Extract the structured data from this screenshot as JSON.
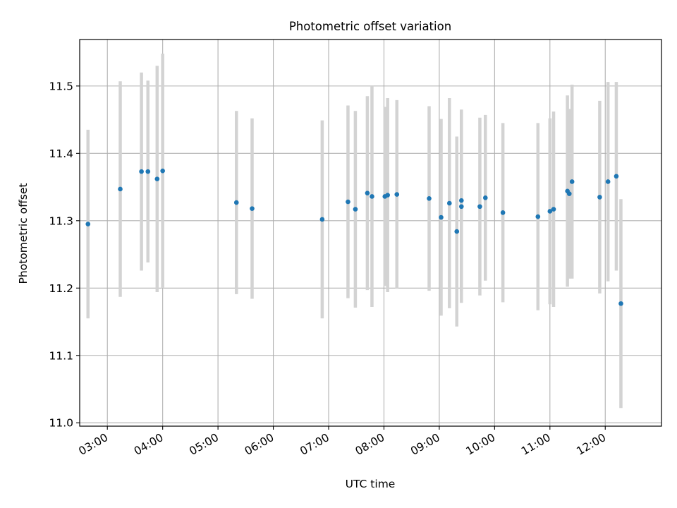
{
  "chart_data": {
    "type": "scatter",
    "title": "Photometric offset variation",
    "xlabel": "UTC time",
    "ylabel": "Photometric offset",
    "x_tick_labels": [
      "03:00",
      "04:00",
      "05:00",
      "06:00",
      "07:00",
      "08:00",
      "09:00",
      "10:00",
      "11:00",
      "12:00"
    ],
    "x_tick_times": [
      "03:00",
      "04:00",
      "05:00",
      "06:00",
      "07:00",
      "08:00",
      "09:00",
      "10:00",
      "11:00",
      "12:00"
    ],
    "xlim": [
      "02:30",
      "13:01"
    ],
    "y_ticks": [
      11.0,
      11.1,
      11.2,
      11.3,
      11.4,
      11.5
    ],
    "y_tick_labels": [
      "11.0",
      "11.1",
      "11.2",
      "11.3",
      "11.4",
      "11.5"
    ],
    "ylim": [
      10.995,
      11.569
    ],
    "grid": true,
    "colors": {
      "points": "#1f77b4",
      "error_bars": "#d3d3d3",
      "grid": "#b0b0b0"
    },
    "series": [
      {
        "points": [
          {
            "x": "02:39",
            "y": 11.295,
            "err": 0.14
          },
          {
            "x": "03:14",
            "y": 11.347,
            "err": 0.16
          },
          {
            "x": "03:37",
            "y": 11.373,
            "err": 0.147
          },
          {
            "x": "03:44",
            "y": 11.373,
            "err": 0.135
          },
          {
            "x": "03:54",
            "y": 11.362,
            "err": 0.168
          },
          {
            "x": "04:00",
            "y": 11.374,
            "err": 0.174
          },
          {
            "x": "05:20",
            "y": 11.327,
            "err": 0.136
          },
          {
            "x": "05:37",
            "y": 11.318,
            "err": 0.134
          },
          {
            "x": "06:53",
            "y": 11.302,
            "err": 0.147
          },
          {
            "x": "07:21",
            "y": 11.328,
            "err": 0.143
          },
          {
            "x": "07:29",
            "y": 11.317,
            "err": 0.146
          },
          {
            "x": "07:42",
            "y": 11.341,
            "err": 0.144
          },
          {
            "x": "07:47",
            "y": 11.336,
            "err": 0.164
          },
          {
            "x": "08:01",
            "y": 11.336,
            "err": 0.133
          },
          {
            "x": "08:04",
            "y": 11.338,
            "err": 0.144
          },
          {
            "x": "08:14",
            "y": 11.339,
            "err": 0.14
          },
          {
            "x": "08:49",
            "y": 11.333,
            "err": 0.137
          },
          {
            "x": "09:02",
            "y": 11.305,
            "err": 0.146
          },
          {
            "x": "09:11",
            "y": 11.326,
            "err": 0.156
          },
          {
            "x": "09:19",
            "y": 11.284,
            "err": 0.141
          },
          {
            "x": "09:24",
            "y": 11.33,
            "err": 0.135
          },
          {
            "x": "09:24",
            "y": 11.321,
            "err": 0.143
          },
          {
            "x": "09:44",
            "y": 11.321,
            "err": 0.132
          },
          {
            "x": "09:50",
            "y": 11.334,
            "err": 0.123
          },
          {
            "x": "10:09",
            "y": 11.312,
            "err": 0.133
          },
          {
            "x": "10:47",
            "y": 11.306,
            "err": 0.139
          },
          {
            "x": "11:00",
            "y": 11.314,
            "err": 0.138
          },
          {
            "x": "11:04",
            "y": 11.317,
            "err": 0.145
          },
          {
            "x": "11:19",
            "y": 11.344,
            "err": 0.142
          },
          {
            "x": "11:21",
            "y": 11.34,
            "err": 0.126
          },
          {
            "x": "11:24",
            "y": 11.358,
            "err": 0.144
          },
          {
            "x": "11:54",
            "y": 11.335,
            "err": 0.143
          },
          {
            "x": "12:03",
            "y": 11.358,
            "err": 0.148
          },
          {
            "x": "12:12",
            "y": 11.366,
            "err": 0.14
          },
          {
            "x": "12:17",
            "y": 11.177,
            "err": 0.155
          }
        ]
      }
    ]
  }
}
